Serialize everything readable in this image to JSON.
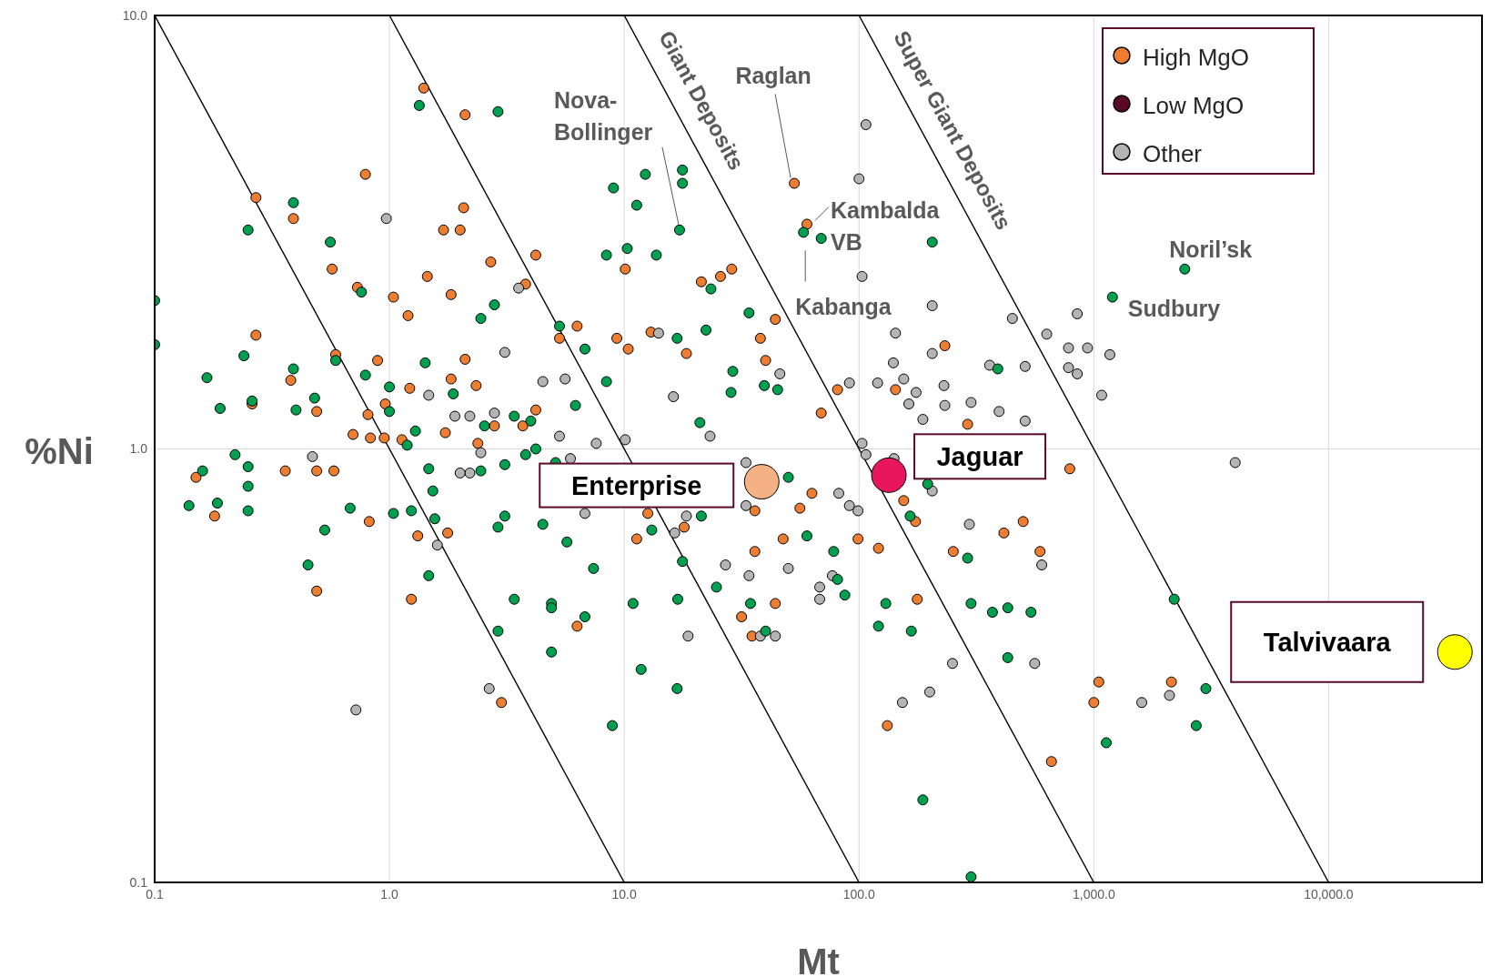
{
  "chart_data": {
    "type": "scatter",
    "xlabel": "Mt",
    "ylabel": "%Ni",
    "log": "xy",
    "grid": true,
    "legend": "top right",
    "marker": "circle",
    "xlim": [
      0.1,
      45000
    ],
    "ylim": [
      0.1,
      10
    ],
    "xticks": [
      {
        "value": 0.1,
        "label": "0.1"
      },
      {
        "value": 1,
        "label": "1.0"
      },
      {
        "value": 10,
        "label": "10.0"
      },
      {
        "value": 100,
        "label": "100.0"
      },
      {
        "value": 1000,
        "label": "1,000.0"
      },
      {
        "value": 10000,
        "label": "10,000.0"
      }
    ],
    "yticks": [
      {
        "value": 0.1,
        "label": "0.1"
      },
      {
        "value": 1,
        "label": "1.0"
      },
      {
        "value": 10,
        "label": "10.0"
      }
    ],
    "series": [
      {
        "type": "line",
        "marker": "none",
        "color": "#000000",
        "x": [
          0.1,
          10
        ],
        "values": [
          10,
          0.1
        ]
      },
      {
        "type": "line",
        "marker": "none",
        "color": "#000000",
        "x": [
          1,
          100
        ],
        "values": [
          10,
          0.1
        ]
      },
      {
        "type": "line",
        "marker": "none",
        "name": "Giant Deposits",
        "color": "#000000",
        "x": [
          10,
          1000
        ],
        "values": [
          10,
          0.1
        ]
      },
      {
        "type": "line",
        "marker": "none",
        "name": "Super Giant Deposits",
        "color": "#000000",
        "x": [
          100,
          10000
        ],
        "values": [
          10,
          0.1
        ]
      },
      {
        "name": "High MgO",
        "color": "#ed7d31",
        "x": [
          1.4,
          2.1,
          0.79,
          0.27,
          0.39,
          2.07,
          1.7,
          2.0,
          4.2,
          2.7,
          0.57,
          1.45,
          3.8,
          1.04,
          1.83,
          0.73,
          1.2,
          0.27,
          0.59,
          0.89,
          0.38,
          2.1,
          1.83,
          2.34,
          1.22,
          0.49,
          0.81,
          0.96,
          0.26,
          0.7,
          0.83,
          0.95,
          1.13,
          1.73,
          2.38,
          2.8,
          3.7,
          4.2,
          6.3,
          5.3,
          9.3,
          10.4,
          13,
          18.4,
          21.3,
          25.7,
          28.7,
          10.1,
          38,
          44,
          40,
          53,
          60,
          81,
          69,
          143,
          232,
          290,
          790,
          0.36,
          0.49,
          0.58,
          0.18,
          0.15,
          0.49,
          1.32,
          1.77,
          1.24,
          3.0,
          0.82,
          12.6,
          11.3,
          18,
          6.3,
          31.6,
          35,
          36,
          44,
          47.5,
          56,
          63,
          99,
          121,
          155,
          174,
          177,
          132,
          252,
          414,
          500,
          590,
          660,
          1050,
          1000,
          2140,
          36
        ],
        "values": [
          6.8,
          5.9,
          4.3,
          3.8,
          3.4,
          3.6,
          3.2,
          3.2,
          2.8,
          2.7,
          2.6,
          2.5,
          2.4,
          2.24,
          2.27,
          2.36,
          2.03,
          1.83,
          1.65,
          1.6,
          1.44,
          1.61,
          1.45,
          1.4,
          1.38,
          1.22,
          1.2,
          1.27,
          1.27,
          1.08,
          1.06,
          1.06,
          1.05,
          1.09,
          1.03,
          1.13,
          1.13,
          1.23,
          1.92,
          1.8,
          1.8,
          1.7,
          1.86,
          1.66,
          2.43,
          2.5,
          2.6,
          2.6,
          1.8,
          1.99,
          1.6,
          4.1,
          3.3,
          1.37,
          1.21,
          1.37,
          1.73,
          1.14,
          0.9,
          0.89,
          0.89,
          0.89,
          0.7,
          0.86,
          0.47,
          0.63,
          0.64,
          0.45,
          0.26,
          0.68,
          0.71,
          0.62,
          0.66,
          0.39,
          0.41,
          0.37,
          0.58,
          0.44,
          0.62,
          0.73,
          0.79,
          0.62,
          0.59,
          0.76,
          0.68,
          0.45,
          0.23,
          0.58,
          0.64,
          0.68,
          0.58,
          0.19,
          0.29,
          0.26,
          0.29,
          0.72
        ]
      },
      {
        "name": "Low MgO",
        "color": "#5a0a28"
      },
      {
        "name": "Other",
        "color": "#b4b4b4",
        "x": [
          107,
          100,
          103,
          205,
          450,
          630,
          850,
          780,
          940,
          1170,
          780,
          850,
          1080,
          510,
          360,
          395,
          510,
          300,
          230,
          205,
          143,
          140,
          155,
          175,
          163,
          187,
          232,
          120,
          91,
          46,
          103,
          107,
          141,
          205,
          295,
          600,
          560,
          250,
          200,
          153,
          1600,
          2100,
          4000,
          50,
          68,
          77,
          68,
          82,
          91,
          99,
          34,
          27,
          33,
          33,
          38,
          44,
          18.7,
          16.4,
          18.4,
          23.2,
          10.1,
          7.6,
          6.8,
          5.9,
          5.3,
          5.6,
          4.5,
          3.55,
          3.1,
          1.9,
          2.2,
          2.8,
          2.45,
          2.2,
          2.0,
          1.47,
          0.47,
          0.97,
          1.6,
          2.66,
          0.72,
          14,
          16.2
        ],
        "values": [
          5.6,
          4.2,
          2.5,
          2.14,
          2.0,
          1.84,
          2.05,
          1.71,
          1.71,
          1.65,
          1.54,
          1.49,
          1.33,
          1.55,
          1.56,
          1.22,
          1.16,
          1.28,
          1.4,
          1.66,
          1.85,
          1.58,
          1.45,
          1.35,
          1.27,
          1.17,
          1.26,
          1.42,
          1.42,
          1.49,
          1.03,
          0.97,
          0.95,
          0.8,
          0.67,
          0.54,
          0.32,
          0.32,
          0.275,
          0.26,
          0.26,
          0.27,
          0.93,
          0.53,
          0.48,
          0.51,
          0.45,
          0.79,
          0.74,
          0.72,
          0.51,
          0.54,
          0.74,
          0.93,
          0.37,
          0.37,
          0.37,
          0.64,
          0.7,
          1.07,
          1.05,
          1.03,
          0.71,
          0.95,
          1.07,
          1.45,
          1.43,
          2.35,
          1.67,
          1.19,
          1.19,
          1.21,
          0.98,
          0.88,
          0.88,
          1.33,
          0.96,
          3.4,
          0.6,
          0.28,
          0.25,
          1.85,
          1.32
        ]
      },
      {
        "color": "#00a050",
        "x": [
          1.34,
          2.9,
          0.39,
          0.25,
          0.1,
          0.1,
          0.76,
          0.56,
          0.167,
          0.24,
          0.39,
          0.19,
          0.26,
          0.48,
          0.4,
          0.59,
          0.79,
          1.0,
          1.0,
          1.42,
          1.87,
          1.29,
          1.19,
          0.22,
          0.25,
          0.16,
          0.14,
          0.185,
          0.25,
          0.25,
          0.53,
          0.45,
          0.68,
          1.04,
          1.24,
          1.47,
          1.53,
          1.56,
          1.47,
          2.45,
          3.1,
          2.9,
          3.1,
          2.9,
          3.4,
          4.9,
          4.9,
          4.9,
          4.5,
          5.7,
          6.8,
          7.4,
          8.9,
          11.8,
          10.9,
          16.9,
          16.8,
          17.7,
          21.3,
          24.7,
          34.5,
          40,
          50,
          60,
          78,
          81,
          87,
          121,
          130,
          167,
          187,
          290,
          300,
          300,
          370,
          430,
          430,
          540,
          1130,
          2200,
          2730,
          3000,
          2440,
          1200,
          205,
          69,
          58,
          17.2,
          17.7,
          17.7,
          12.3,
          11.3,
          9,
          10.3,
          8.4,
          13.7,
          23.4,
          22.3,
          16.8,
          34,
          29,
          28.5,
          39.5,
          45,
          8.4,
          6.2,
          6.8,
          5.3,
          2.45,
          2.8,
          4.2,
          5.1,
          3.8,
          2.54,
          3.4,
          4.0,
          21,
          13.1,
          196,
          390,
          165
        ],
        "values": [
          6.2,
          6.0,
          3.7,
          3.2,
          2.2,
          1.74,
          2.3,
          3.0,
          1.46,
          1.64,
          1.53,
          1.24,
          1.29,
          1.31,
          1.23,
          1.6,
          1.48,
          1.39,
          1.22,
          1.58,
          1.34,
          1.1,
          1.02,
          0.97,
          0.91,
          0.89,
          0.74,
          0.75,
          0.72,
          0.82,
          0.65,
          0.54,
          0.73,
          0.71,
          0.72,
          0.9,
          0.8,
          0.69,
          0.51,
          0.89,
          0.92,
          0.66,
          0.7,
          0.38,
          0.45,
          0.44,
          0.43,
          0.34,
          0.67,
          0.61,
          0.41,
          0.53,
          0.23,
          0.31,
          0.44,
          0.45,
          0.28,
          0.55,
          0.7,
          0.48,
          0.44,
          0.38,
          0.86,
          0.63,
          0.58,
          0.5,
          0.46,
          0.39,
          0.44,
          0.38,
          0.155,
          0.56,
          0.44,
          0.103,
          0.42,
          0.43,
          0.33,
          0.42,
          0.21,
          0.45,
          0.23,
          0.28,
          2.6,
          2.24,
          3.0,
          3.06,
          3.16,
          3.2,
          4.1,
          4.4,
          4.3,
          3.65,
          4.0,
          2.9,
          2.8,
          2.8,
          2.34,
          1.88,
          1.8,
          2.06,
          1.51,
          1.35,
          1.4,
          1.37,
          1.43,
          1.26,
          1.7,
          1.92,
          2.0,
          2.15,
          1.0,
          0.93,
          0.97,
          1.13,
          1.19,
          1.16,
          1.15,
          0.65,
          0.83,
          1.53,
          0.7
        ]
      },
      {
        "color": "#f4b183",
        "x": [
          38.5
        ],
        "values": [
          0.84
        ]
      },
      {
        "color": "#e8175d",
        "x": [
          134
        ],
        "values": [
          0.87
        ]
      },
      {
        "color": "#ffff00",
        "x": [
          34500
        ],
        "values": [
          0.34
        ]
      }
    ],
    "annotations": [
      {
        "text": "Raglan",
        "x": 53,
        "y": 4.1
      },
      {
        "text": "Nova-Bollinger",
        "x": 17.2,
        "y": 3.2
      },
      {
        "text": "Kambalda VB",
        "x": 60,
        "y": 3.3
      },
      {
        "text": "Kabanga",
        "x": 58,
        "y": 3.16
      },
      {
        "text": "Noril’sk",
        "x": 2440,
        "y": 2.6
      },
      {
        "text": "Sudbury",
        "x": 1200,
        "y": 2.24
      },
      {
        "text": "Enterprise",
        "x": 38.5,
        "y": 0.84
      },
      {
        "text": "Jaguar",
        "x": 134,
        "y": 0.87
      },
      {
        "text": "Talvivaara",
        "x": 34500,
        "y": 0.34
      }
    ]
  }
}
